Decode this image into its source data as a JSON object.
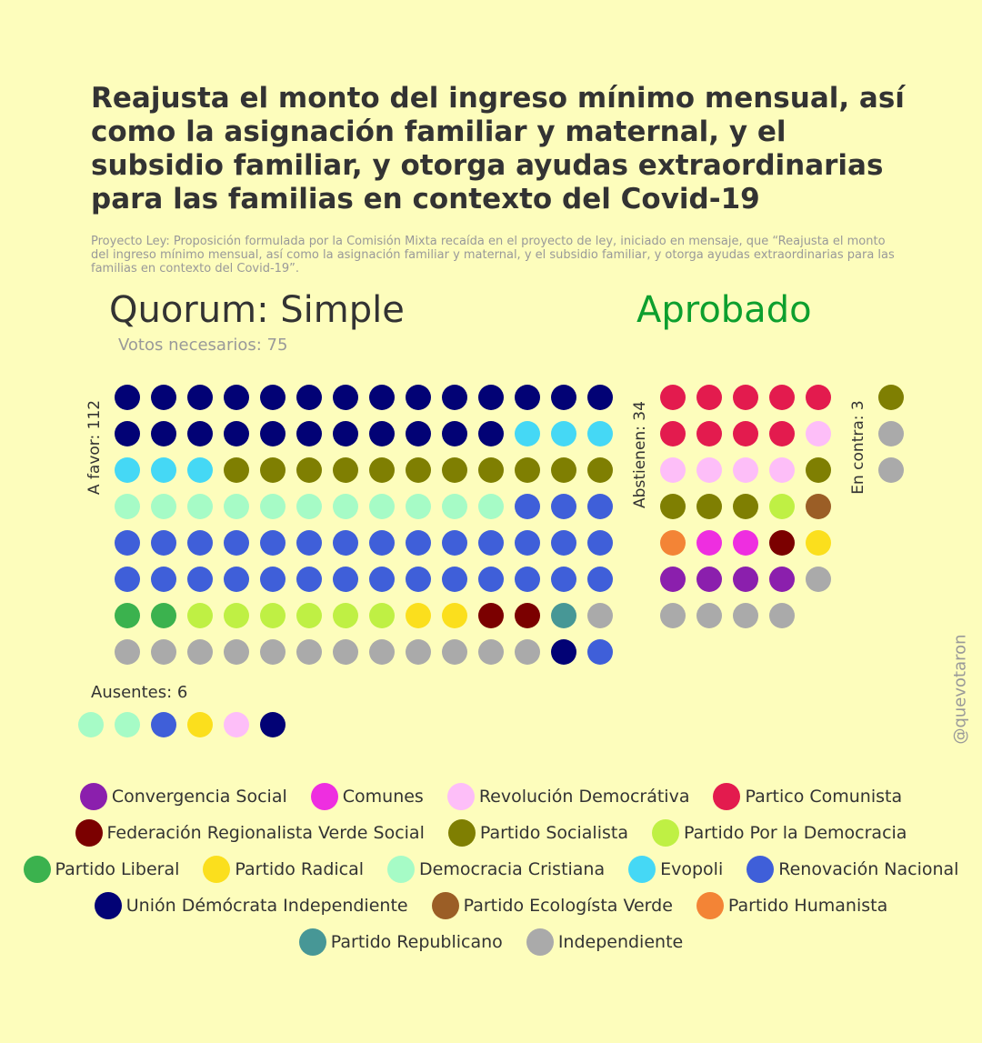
{
  "title": "Reajusta el monto del ingreso mínimo mensual, así como la asignación familiar y maternal, y el subsidio familiar, y otorga ayudas extraordinarias para las familias en contexto del Covid-19",
  "description": "Proyecto Ley: Proposición formulada por la Comisión Mixta recaída en el proyecto de ley, iniciado en mensaje, que “Reajusta el monto del ingreso mínimo mensual, así como la asignación familiar y maternal, y el subsidio familiar, y otorga ayudas extraordinarias para las familias en contexto del Covid-19”.",
  "quorum": "Quorum: Simple",
  "result": "Aprobado",
  "votes_needed": "Votos necesarios: 75",
  "labels": {
    "favor": "A favor: 112",
    "abstain": "Abstienen: 34",
    "against": "En contra: 3",
    "absent": "Ausentes: 6"
  },
  "credit": "@quevotaron",
  "colors": {
    "result": "#0d9f2e",
    "background": "#fdfdbc"
  },
  "chart_data": {
    "type": "dot-matrix",
    "parties": [
      {
        "key": "CS",
        "name": "Convergencia Social",
        "color": "#8b1fad"
      },
      {
        "key": "COM",
        "name": "Comunes",
        "color": "#ee2ee0"
      },
      {
        "key": "RD",
        "name": "Revolución Democrátiva",
        "color": "#fdbef8"
      },
      {
        "key": "PC",
        "name": "Partico Comunista",
        "color": "#e31b4e"
      },
      {
        "key": "FRVS",
        "name": "Federación Regionalista Verde Social",
        "color": "#7b0000"
      },
      {
        "key": "PS",
        "name": "Partido Socialista",
        "color": "#7f7f02"
      },
      {
        "key": "PPD",
        "name": "Partido Por la Democracia",
        "color": "#bff044"
      },
      {
        "key": "PL",
        "name": "Partido Liberal",
        "color": "#3bb24e"
      },
      {
        "key": "PR",
        "name": "Partido Radical",
        "color": "#fbdf1d"
      },
      {
        "key": "DC",
        "name": "Democracia Cristiana",
        "color": "#a6fbc6"
      },
      {
        "key": "EVO",
        "name": "Evopoli",
        "color": "#45d8f5"
      },
      {
        "key": "RN",
        "name": "Renovación Nacional",
        "color": "#3f5fd9"
      },
      {
        "key": "UDI",
        "name": "Unión Démócrata Independiente",
        "color": "#020275"
      },
      {
        "key": "PEV",
        "name": "Partido Ecologísta Verde",
        "color": "#9b5e26"
      },
      {
        "key": "PH",
        "name": "Partido Humanista",
        "color": "#f38436"
      },
      {
        "key": "REP",
        "name": "Partido Republicano",
        "color": "#479796"
      },
      {
        "key": "IND",
        "name": "Independiente",
        "color": "#aaaaaa"
      }
    ],
    "legend_rows": [
      [
        "CS",
        "COM",
        "RD",
        "PC"
      ],
      [
        "FRVS",
        "PS",
        "PPD"
      ],
      [
        "PL",
        "PR",
        "DC",
        "EVO",
        "RN"
      ],
      [
        "UDI",
        "PEV",
        "PH"
      ],
      [
        "REP",
        "IND"
      ]
    ],
    "groups": [
      {
        "name": "A favor",
        "count": 112,
        "columns": 14,
        "composition": [
          [
            "UDI",
            25
          ],
          [
            "EVO",
            6
          ],
          [
            "PS",
            11
          ],
          [
            "DC",
            11
          ],
          [
            "RN",
            31
          ],
          [
            "PL",
            2
          ],
          [
            "PPD",
            6
          ],
          [
            "PR",
            2
          ],
          [
            "FRVS",
            2
          ],
          [
            "REP",
            1
          ],
          [
            "IND",
            13
          ],
          [
            "UDI",
            1
          ],
          [
            "RN",
            1
          ]
        ]
      },
      {
        "name": "Abstienen",
        "count": 34,
        "columns": 5,
        "composition": [
          [
            "PC",
            9
          ],
          [
            "RD",
            5
          ],
          [
            "PS",
            4
          ],
          [
            "PPD",
            1
          ],
          [
            "PEV",
            1
          ],
          [
            "PH",
            1
          ],
          [
            "COM",
            2
          ],
          [
            "FRVS",
            1
          ],
          [
            "PR",
            1
          ],
          [
            "CS",
            4
          ],
          [
            "IND",
            5
          ]
        ]
      },
      {
        "name": "En contra",
        "count": 3,
        "columns": 1,
        "composition": [
          [
            "PS",
            1
          ],
          [
            "IND",
            2
          ]
        ]
      },
      {
        "name": "Ausentes",
        "count": 6,
        "columns": 6,
        "composition": [
          [
            "DC",
            2
          ],
          [
            "RN",
            1
          ],
          [
            "PR",
            1
          ],
          [
            "RD",
            1
          ],
          [
            "UDI",
            1
          ]
        ]
      }
    ]
  }
}
